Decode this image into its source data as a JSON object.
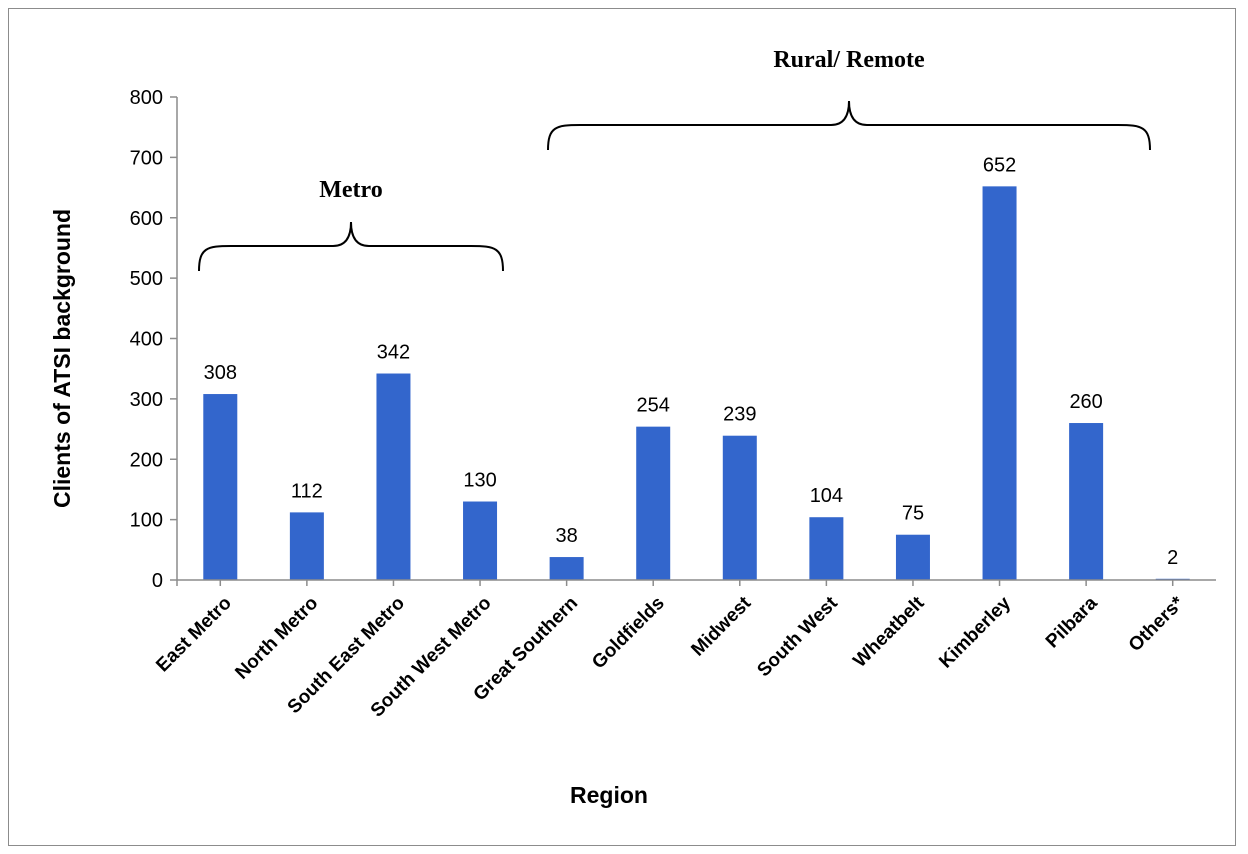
{
  "chart_data": {
    "type": "bar",
    "categories": [
      "East Metro",
      "North Metro",
      "South East Metro",
      "South West Metro",
      "Great Southern",
      "Goldfields",
      "Midwest",
      "South West",
      "Wheatbelt",
      "Kimberley",
      "Pilbara",
      "Others*"
    ],
    "values": [
      308,
      112,
      342,
      130,
      38,
      254,
      239,
      104,
      75,
      652,
      260,
      2
    ],
    "data_labels": [
      "308",
      "112",
      "342",
      "130",
      "38",
      "254",
      "239",
      "104",
      "75",
      "652",
      "260",
      "2"
    ],
    "xlabel": "Region",
    "ylabel": "Clients of ATSI background",
    "ylim": [
      0,
      800
    ],
    "yticks": [
      0,
      100,
      200,
      300,
      400,
      500,
      600,
      700,
      800
    ],
    "ytick_labels": [
      "0",
      "100",
      "200",
      "300",
      "400",
      "500",
      "600",
      "700",
      "800"
    ],
    "grid": false,
    "legend": "none",
    "bar_color": "#3366cc",
    "groups": [
      {
        "label": "Metro",
        "from_category": 0,
        "to_category": 3
      },
      {
        "label": "Rural/ Remote",
        "from_category": 4,
        "to_category": 11
      }
    ]
  }
}
